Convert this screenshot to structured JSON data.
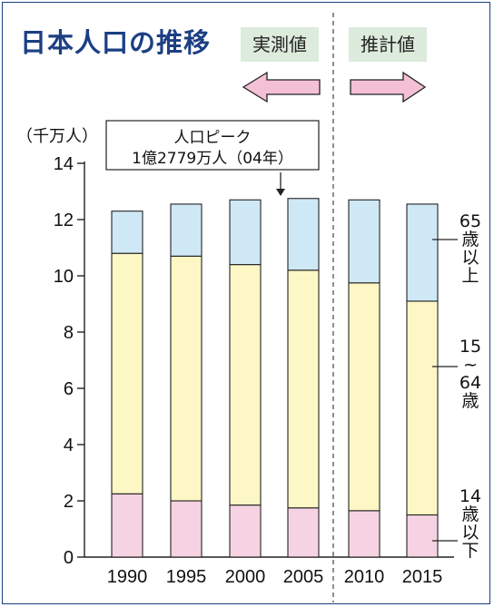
{
  "header": {
    "title": "日本人口の推移",
    "actual_label": "実測値",
    "projection_label": "推計値"
  },
  "colors": {
    "title": "#1c3f83",
    "under15": "#f6d3e2",
    "age15to64": "#fcf7c4",
    "over65": "#cfe8f6",
    "tag_bg": "#dcebdc",
    "arrow": "#f4c0d6"
  },
  "icons": {
    "left_arrow": "left-arrow-icon",
    "right_arrow": "right-arrow-icon",
    "peak_arrow": "down-arrow-icon"
  },
  "chart_data": {
    "type": "bar",
    "stacked": true,
    "ylabel": "（千万人）",
    "ylim": [
      0,
      14
    ],
    "yticks": [
      "0",
      "2",
      "4",
      "6",
      "8",
      "10",
      "12",
      "14"
    ],
    "categories": [
      "1990",
      "1995",
      "2000",
      "2005",
      "2010",
      "2015"
    ],
    "series": [
      {
        "key": "under15",
        "values": [
          2.25,
          2.0,
          1.85,
          1.75,
          1.65,
          1.5
        ]
      },
      {
        "key": "age15to64",
        "values": [
          8.55,
          8.7,
          8.55,
          8.45,
          8.1,
          7.6
        ]
      },
      {
        "key": "over65",
        "values": [
          1.5,
          1.85,
          2.3,
          2.55,
          2.95,
          3.45
        ]
      }
    ],
    "segment_labels": {
      "over65": [
        "65",
        "歳",
        "以",
        "上"
      ],
      "age15to64": [
        "15",
        "~",
        "64",
        "歳"
      ],
      "under15": [
        "14",
        "歳",
        "以",
        "下"
      ]
    },
    "annotation": {
      "line1": "人口ピーク",
      "line2": "1億2779万人（04年）"
    }
  }
}
